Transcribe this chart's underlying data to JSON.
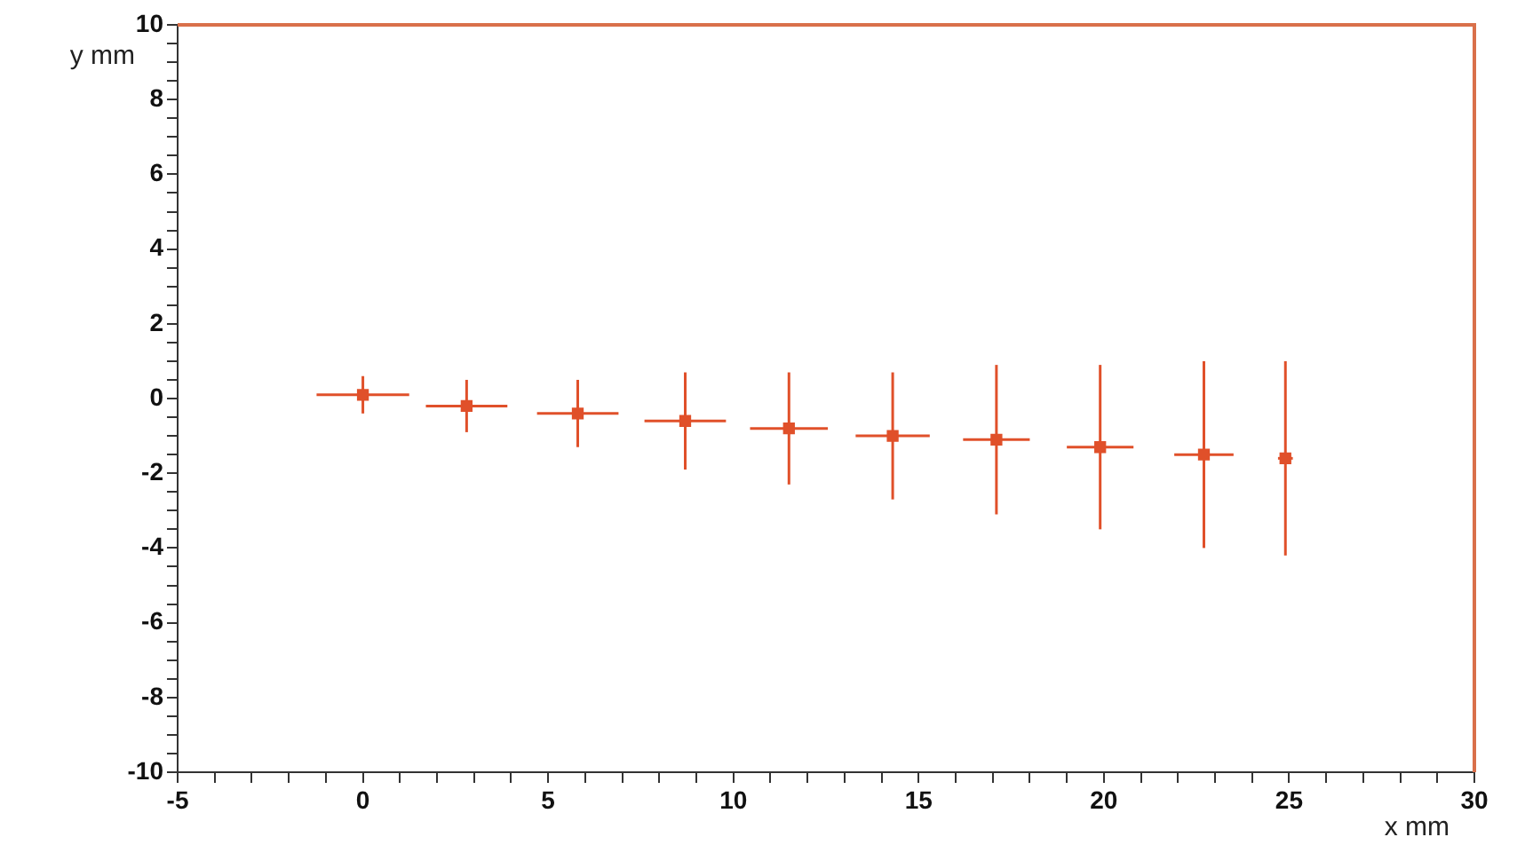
{
  "chart_data": {
    "type": "scatter",
    "xlabel": "x mm",
    "ylabel": "y mm",
    "x": [
      0,
      2.8,
      5.8,
      8.7,
      11.5,
      14.3,
      17.1,
      19.9,
      22.7,
      24.9
    ],
    "series": [
      {
        "color": "#e0502a",
        "values": [
          0.1,
          -0.2,
          -0.4,
          -0.6,
          -0.8,
          -1.0,
          -1.1,
          -1.3,
          -1.5,
          -1.6
        ],
        "xerrors": [
          1.25,
          1.1,
          1.1,
          1.1,
          1.05,
          1.0,
          0.9,
          0.9,
          0.8,
          0.2
        ],
        "errors": [
          0.5,
          0.7,
          0.9,
          1.3,
          1.5,
          1.7,
          2.0,
          2.2,
          2.5,
          2.6
        ]
      }
    ],
    "xlim": [
      -5,
      30
    ],
    "xticks": [
      -5,
      {
        "value": -4,
        "label": null
      },
      {
        "value": -3,
        "label": null
      },
      {
        "value": -2,
        "label": null
      },
      {
        "value": -1,
        "label": null
      },
      0,
      {
        "value": 1,
        "label": null
      },
      {
        "value": 2,
        "label": null
      },
      {
        "value": 3,
        "label": null
      },
      {
        "value": 4,
        "label": null
      },
      5,
      {
        "value": 6,
        "label": null
      },
      {
        "value": 7,
        "label": null
      },
      {
        "value": 8,
        "label": null
      },
      {
        "value": 9,
        "label": null
      },
      10,
      {
        "value": 11,
        "label": null
      },
      {
        "value": 12,
        "label": null
      },
      {
        "value": 13,
        "label": null
      },
      {
        "value": 14,
        "label": null
      },
      15,
      {
        "value": 16,
        "label": null
      },
      {
        "value": 17,
        "label": null
      },
      {
        "value": 18,
        "label": null
      },
      {
        "value": 19,
        "label": null
      },
      20,
      {
        "value": 21,
        "label": null
      },
      {
        "value": 22,
        "label": null
      },
      {
        "value": 23,
        "label": null
      },
      {
        "value": 24,
        "label": null
      },
      25,
      {
        "value": 26,
        "label": null
      },
      {
        "value": 27,
        "label": null
      },
      {
        "value": 28,
        "label": null
      },
      {
        "value": 29,
        "label": null
      },
      30
    ],
    "ylim": [
      -10,
      10
    ],
    "yticks": [
      -10,
      {
        "value": -9.5,
        "label": null
      },
      {
        "value": -9,
        "label": null
      },
      {
        "value": -8.5,
        "label": null
      },
      -8,
      {
        "value": -7.5,
        "label": null
      },
      {
        "value": -7,
        "label": null
      },
      {
        "value": -6.5,
        "label": null
      },
      -6,
      {
        "value": -5.5,
        "label": null
      },
      {
        "value": -5,
        "label": null
      },
      {
        "value": -4.5,
        "label": null
      },
      -4,
      {
        "value": -3.5,
        "label": null
      },
      {
        "value": -3,
        "label": null
      },
      {
        "value": -2.5,
        "label": null
      },
      -2,
      {
        "value": -1.5,
        "label": null
      },
      {
        "value": -1,
        "label": null
      },
      {
        "value": -0.5,
        "label": null
      },
      0,
      {
        "value": 0.5,
        "label": null
      },
      {
        "value": 1,
        "label": null
      },
      {
        "value": 1.5,
        "label": null
      },
      2,
      {
        "value": 2.5,
        "label": null
      },
      {
        "value": 3,
        "label": null
      },
      {
        "value": 3.5,
        "label": null
      },
      4,
      {
        "value": 4.5,
        "label": null
      },
      {
        "value": 5,
        "label": null
      },
      {
        "value": 5.5,
        "label": null
      },
      6,
      {
        "value": 6.5,
        "label": null
      },
      {
        "value": 7,
        "label": null
      },
      {
        "value": 7.5,
        "label": null
      },
      8,
      {
        "value": 8.5,
        "label": null
      },
      {
        "value": 9,
        "label": null
      },
      {
        "value": 9.5,
        "label": null
      },
      10
    ],
    "grid": false,
    "legend": false,
    "marker": "square"
  }
}
